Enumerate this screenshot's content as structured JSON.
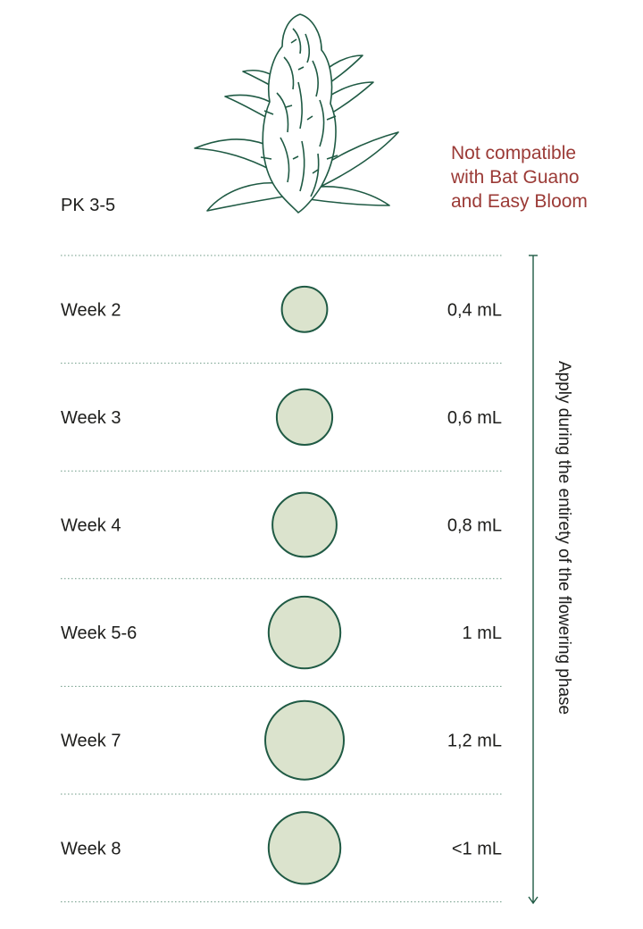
{
  "product": {
    "label": "PK 3-5"
  },
  "warning": {
    "lines": [
      "Not compatible",
      "with Bat Guano",
      "and Easy Bloom"
    ],
    "color": "#9b3a36"
  },
  "phase_note": "Apply during the entirety of the flowering phase",
  "illustration": {
    "icon": "cannabis-bud-icon",
    "color": "#1f5a44"
  },
  "colors": {
    "accent": "#1f5a44",
    "circle_fill": "#dbe3cd",
    "divider": "#6d9a85"
  },
  "chart_data": {
    "type": "bubble-table",
    "categories": [
      "Week 2",
      "Week 3",
      "Week 4",
      "Week 5-6",
      "Week 7",
      "Week 8"
    ],
    "value_labels": [
      "0,4 mL",
      "0,6 mL",
      "0,8 mL",
      "1 mL",
      "1,2 mL",
      "<1 mL"
    ],
    "values": [
      0.4,
      0.6,
      0.8,
      1.0,
      1.2,
      1.0
    ],
    "unit": "mL"
  }
}
